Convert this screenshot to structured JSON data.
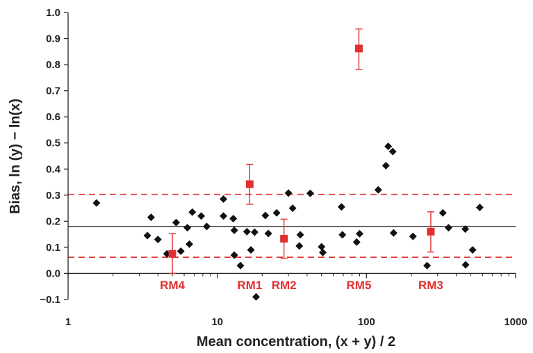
{
  "chart_data": {
    "type": "scatter",
    "title": "",
    "xlabel": "Mean concentration, (x + y) / 2",
    "ylabel": "Bias, ln (y) − ln(x)",
    "xscale": "log",
    "xlim": [
      1,
      1000
    ],
    "ylim": [
      -0.1,
      1.0
    ],
    "x_ticks": [
      1,
      10,
      100,
      1000
    ],
    "x_tick_labels": [
      "1",
      "10",
      "100",
      "1000"
    ],
    "y_ticks": [
      -0.1,
      0.0,
      0.1,
      0.2,
      0.3,
      0.4,
      0.5,
      0.6,
      0.7,
      0.8,
      0.9,
      1.0
    ],
    "y_tick_labels": [
      "−0.1",
      "0.0",
      "0.1",
      "0.2",
      "0.3",
      "0.4",
      "0.5",
      "0.6",
      "0.7",
      "0.8",
      "0.9",
      "1.0"
    ],
    "grid": false,
    "colors": {
      "points": "#111111",
      "reference": "#e03030",
      "mean_line": "#111111",
      "axis": "#222222"
    },
    "mean_line": 0.18,
    "limit_lines": [
      0.062,
      0.303
    ],
    "series": [
      {
        "marker": "diamond",
        "points": [
          [
            1.55,
            0.27
          ],
          [
            3.4,
            0.145
          ],
          [
            3.6,
            0.215
          ],
          [
            4.0,
            0.13
          ],
          [
            4.6,
            0.075
          ],
          [
            5.3,
            0.195
          ],
          [
            5.7,
            0.085
          ],
          [
            6.3,
            0.175
          ],
          [
            6.5,
            0.112
          ],
          [
            6.8,
            0.235
          ],
          [
            7.8,
            0.22
          ],
          [
            8.5,
            0.18
          ],
          [
            11.0,
            0.285
          ],
          [
            11.0,
            0.22
          ],
          [
            12.8,
            0.21
          ],
          [
            13.0,
            0.165
          ],
          [
            13.0,
            0.07
          ],
          [
            14.3,
            0.03
          ],
          [
            15.8,
            0.16
          ],
          [
            16.8,
            0.09
          ],
          [
            17.8,
            0.158
          ],
          [
            18.2,
            -0.09
          ],
          [
            21.0,
            0.222
          ],
          [
            22.0,
            0.153
          ],
          [
            25.0,
            0.232
          ],
          [
            30.0,
            0.308
          ],
          [
            32.0,
            0.25
          ],
          [
            35.5,
            0.105
          ],
          [
            36.0,
            0.148
          ],
          [
            42.0,
            0.307
          ],
          [
            50.0,
            0.102
          ],
          [
            51.0,
            0.08
          ],
          [
            68.0,
            0.255
          ],
          [
            69.0,
            0.148
          ],
          [
            86.0,
            0.12
          ],
          [
            90.0,
            0.152
          ],
          [
            120.0,
            0.32
          ],
          [
            135.0,
            0.413
          ],
          [
            140.0,
            0.487
          ],
          [
            150.0,
            0.467
          ],
          [
            152.0,
            0.155
          ],
          [
            205.0,
            0.142
          ],
          [
            255.0,
            0.03
          ],
          [
            325.0,
            0.232
          ],
          [
            355.0,
            0.175
          ],
          [
            460.0,
            0.17
          ],
          [
            462.0,
            0.033
          ],
          [
            515.0,
            0.09
          ],
          [
            575.0,
            0.253
          ]
        ]
      },
      {
        "marker": "square",
        "points": [
          {
            "label": "RM4",
            "x": 5.0,
            "y": 0.075,
            "err_low": 0.0,
            "err_high": 0.152
          },
          {
            "label": "RM1",
            "x": 16.5,
            "y": 0.342,
            "err_low": 0.265,
            "err_high": 0.418
          },
          {
            "label": "RM2",
            "x": 28.0,
            "y": 0.133,
            "err_low": 0.058,
            "err_high": 0.208
          },
          {
            "label": "RM5",
            "x": 89.0,
            "y": 0.862,
            "err_low": 0.782,
            "err_high": 0.937
          },
          {
            "label": "RM3",
            "x": 270.0,
            "y": 0.16,
            "err_low": 0.082,
            "err_high": 0.236
          }
        ]
      }
    ]
  }
}
